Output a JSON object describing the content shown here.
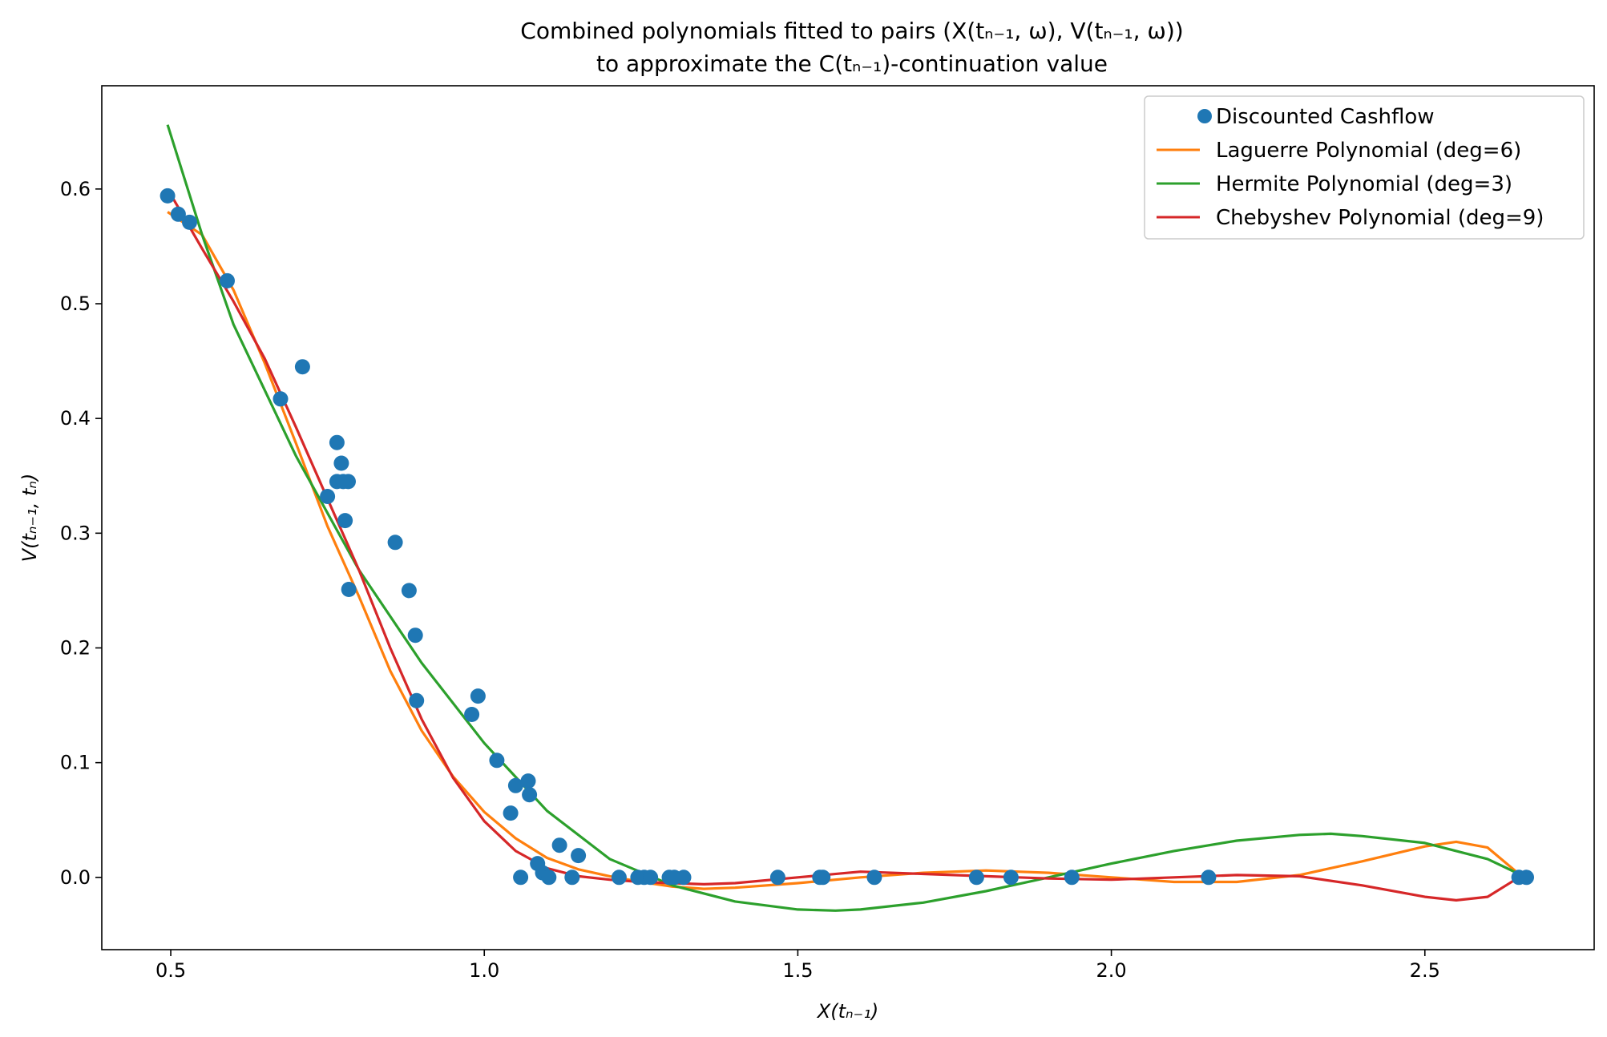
{
  "chart_data": {
    "type": "line",
    "title_lines": [
      "Combined polynomials fitted to pairs (X(tₙ₋₁, ω), V(tₙ₋₁, ω))",
      "to approximate the C(tₙ₋₁)-continuation value"
    ],
    "xlabel": "X(tₙ₋₁)",
    "ylabel": "V(tₙ₋₁, tₙ)",
    "xlim": [
      0.39,
      2.77
    ],
    "ylim": [
      -0.063,
      0.69
    ],
    "xticks": [
      0.5,
      1.0,
      1.5,
      2.0,
      2.5
    ],
    "yticks": [
      0.0,
      0.1,
      0.2,
      0.3,
      0.4,
      0.5,
      0.6
    ],
    "legend_position": "upper right",
    "grid": false,
    "series": [
      {
        "name": "Discounted Cashflow",
        "kind": "scatter",
        "color": "#1f77b4",
        "x": [
          0.495,
          0.512,
          0.53,
          0.59,
          0.675,
          0.71,
          0.75,
          0.765,
          0.765,
          0.772,
          0.775,
          0.778,
          0.783,
          0.784,
          0.858,
          0.88,
          0.89,
          0.892,
          0.98,
          0.99,
          1.02,
          1.042,
          1.05,
          1.058,
          1.07,
          1.072,
          1.085,
          1.093,
          1.103,
          1.12,
          1.14,
          1.15,
          1.215,
          1.245,
          1.255,
          1.265,
          1.295,
          1.303,
          1.318,
          1.468,
          1.535,
          1.54,
          1.622,
          1.785,
          1.84,
          1.937,
          2.155,
          2.65,
          2.662
        ],
        "y": [
          0.594,
          0.578,
          0.571,
          0.52,
          0.417,
          0.445,
          0.332,
          0.345,
          0.379,
          0.361,
          0.345,
          0.311,
          0.345,
          0.251,
          0.292,
          0.25,
          0.211,
          0.154,
          0.142,
          0.158,
          0.102,
          0.056,
          0.08,
          0.0,
          0.084,
          0.072,
          0.012,
          0.004,
          0.0,
          0.028,
          0.0,
          0.019,
          0.0,
          0.0,
          0.0,
          0.0,
          0.0,
          0.0,
          0.0,
          0.0,
          0.0,
          0.0,
          0.0,
          0.0,
          0.0,
          0.0,
          0.0,
          0.0,
          0.0
        ]
      },
      {
        "name": "Laguerre Polynomial (deg=6)",
        "kind": "line",
        "color": "#ff7f0e",
        "x": [
          0.495,
          0.55,
          0.6,
          0.65,
          0.7,
          0.75,
          0.8,
          0.85,
          0.9,
          0.95,
          1.0,
          1.05,
          1.1,
          1.15,
          1.2,
          1.25,
          1.3,
          1.35,
          1.4,
          1.5,
          1.6,
          1.7,
          1.8,
          1.9,
          2.0,
          2.1,
          2.2,
          2.3,
          2.4,
          2.5,
          2.55,
          2.6,
          2.65
        ],
        "y": [
          0.58,
          0.56,
          0.512,
          0.448,
          0.378,
          0.306,
          0.245,
          0.18,
          0.128,
          0.088,
          0.057,
          0.034,
          0.017,
          0.007,
          0.001,
          -0.004,
          -0.008,
          -0.01,
          -0.009,
          -0.005,
          0.0,
          0.004,
          0.006,
          0.004,
          0.0,
          -0.004,
          -0.004,
          0.002,
          0.014,
          0.027,
          0.031,
          0.026,
          0.003
        ]
      },
      {
        "name": "Hermite Polynomial  (deg=3)",
        "kind": "line",
        "color": "#2ca02c",
        "x": [
          0.495,
          0.55,
          0.6,
          0.7,
          0.8,
          0.9,
          1.0,
          1.1,
          1.2,
          1.3,
          1.4,
          1.5,
          1.56,
          1.6,
          1.7,
          1.8,
          1.9,
          2.0,
          2.1,
          2.2,
          2.3,
          2.35,
          2.4,
          2.5,
          2.6,
          2.65
        ],
        "y": [
          0.656,
          0.56,
          0.482,
          0.367,
          0.268,
          0.187,
          0.117,
          0.058,
          0.016,
          -0.007,
          -0.021,
          -0.028,
          -0.029,
          -0.028,
          -0.022,
          -0.012,
          0.0,
          0.012,
          0.023,
          0.032,
          0.037,
          0.038,
          0.036,
          0.03,
          0.016,
          0.003
        ]
      },
      {
        "name": "Chebyshev Polynomial  (deg=9)",
        "kind": "line",
        "color": "#d62728",
        "x": [
          0.495,
          0.55,
          0.6,
          0.65,
          0.7,
          0.75,
          0.8,
          0.85,
          0.9,
          0.95,
          1.0,
          1.05,
          1.1,
          1.15,
          1.2,
          1.25,
          1.3,
          1.35,
          1.4,
          1.5,
          1.6,
          1.7,
          1.8,
          1.9,
          2.0,
          2.1,
          2.2,
          2.3,
          2.4,
          2.5,
          2.55,
          2.6,
          2.65
        ],
        "y": [
          0.6,
          0.548,
          0.502,
          0.452,
          0.392,
          0.33,
          0.268,
          0.2,
          0.138,
          0.087,
          0.049,
          0.023,
          0.008,
          0.001,
          -0.002,
          -0.004,
          -0.005,
          -0.006,
          -0.005,
          0.0,
          0.005,
          0.003,
          0.001,
          -0.001,
          -0.002,
          0.0,
          0.002,
          0.001,
          -0.007,
          -0.017,
          -0.02,
          -0.017,
          0.0
        ]
      }
    ]
  }
}
